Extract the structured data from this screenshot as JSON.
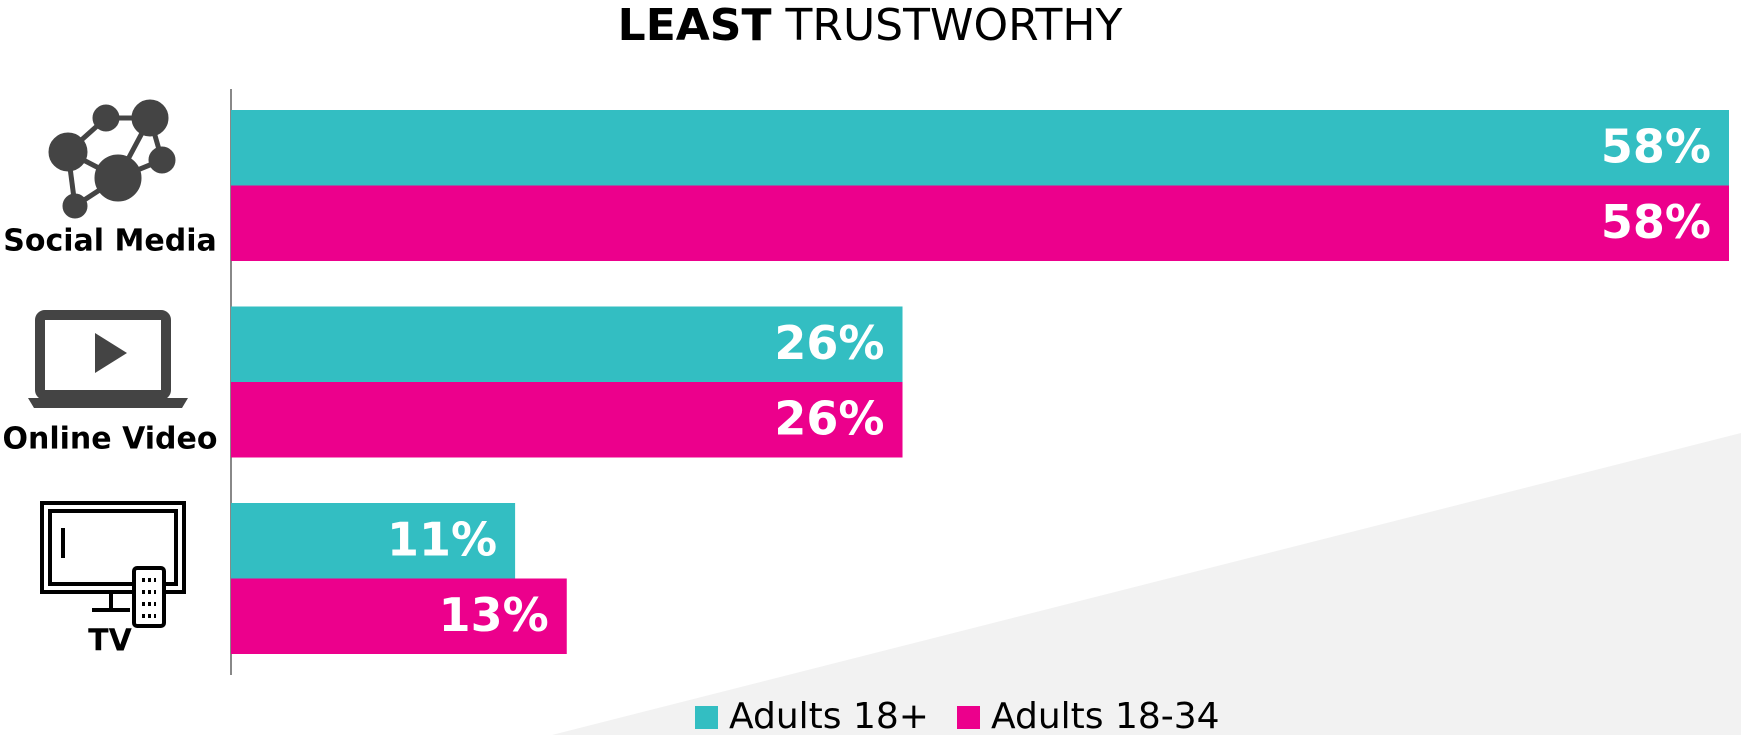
{
  "chart_data": {
    "type": "bar",
    "orientation": "horizontal",
    "title": [
      "LEAST",
      "TRUSTWORTHY"
    ],
    "categories": [
      "Social Media",
      "Online Video",
      "TV"
    ],
    "series": [
      {
        "name": "Adults 18+",
        "color": "#33bec2",
        "values": [
          58,
          26,
          11
        ],
        "value_labels": [
          "58%",
          "26%",
          "11%"
        ]
      },
      {
        "name": "Adults 18-34",
        "color": "#ec008c",
        "values": [
          58,
          26,
          13
        ],
        "value_labels": [
          "58%",
          "26%",
          "13%"
        ]
      }
    ],
    "xlim": [
      0,
      58
    ]
  }
}
